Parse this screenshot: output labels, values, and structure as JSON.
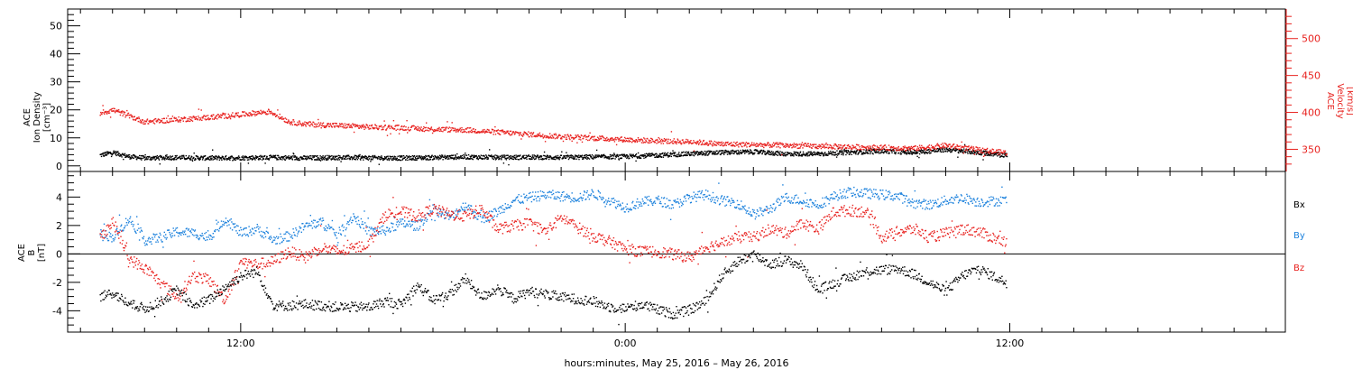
{
  "xlabel": "hours:minutes, May 25, 2016 – May 26, 2016",
  "colors": {
    "black": "#000000",
    "red": "#e8211e",
    "blue": "#1a80dc"
  },
  "chart_data": [
    {
      "type": "scatter",
      "panel": "top",
      "ylabel_left": [
        "ACE",
        "Ion Density",
        "[cm⁻³]"
      ],
      "ylabel_right": [
        "ACE",
        "Velocity",
        "[km/s]"
      ],
      "ylim_left": [
        -2,
        56
      ],
      "yticks_left": [
        0,
        10,
        20,
        30,
        40,
        50
      ],
      "ylim_right": [
        320,
        540
      ],
      "yticks_right": [
        350,
        400,
        450,
        500
      ],
      "x_ticks": [
        "12:00",
        "0:00",
        "12:00"
      ],
      "series": [
        {
          "name": "Ion Density",
          "axis": "left",
          "color": "#000000",
          "x": [
            7.6,
            8,
            8.5,
            9,
            10,
            11,
            12,
            13,
            14,
            15,
            16,
            17,
            18,
            19,
            20,
            21,
            22,
            23,
            24,
            25,
            26,
            27,
            28,
            29,
            30,
            31,
            32,
            33,
            34,
            35,
            35.9
          ],
          "y": [
            4,
            5,
            3.5,
            3,
            3.2,
            3,
            3.1,
            3.2,
            3,
            3.2,
            3.1,
            3,
            3.2,
            3.4,
            3.2,
            3.3,
            3.2,
            3.4,
            3.5,
            4,
            4.5,
            5,
            5.2,
            4.5,
            4.5,
            5,
            5.5,
            5,
            6,
            5,
            4
          ]
        },
        {
          "name": "Velocity",
          "axis": "right",
          "color": "#e8211e",
          "x": [
            7.6,
            8,
            8.5,
            9,
            10,
            11,
            12,
            12.9,
            13.5,
            14,
            15,
            16,
            17,
            18,
            19,
            20,
            21,
            22,
            23,
            24,
            25,
            26,
            27,
            28,
            29,
            30,
            31,
            32,
            33,
            34,
            35,
            35.9
          ],
          "y": [
            400,
            404,
            396,
            388,
            391,
            394,
            398,
            402,
            388,
            385,
            383,
            381,
            380,
            378,
            377,
            374,
            371,
            368,
            366,
            364,
            362,
            361,
            358,
            357,
            356,
            355,
            354,
            353,
            352,
            356,
            350,
            346
          ]
        }
      ]
    },
    {
      "type": "scatter",
      "panel": "bottom",
      "ylabel_left": [
        "ACE",
        "B",
        "[nT]"
      ],
      "ylim": [
        -5.5,
        5.8
      ],
      "yticks": [
        -4,
        -2,
        0,
        2,
        4
      ],
      "x_ticks": [
        "12:00",
        "0:00",
        "12:00"
      ],
      "series": [
        {
          "name": "Bx",
          "color": "#000000",
          "x": [
            7.6,
            8,
            8.5,
            9,
            9.5,
            10,
            10.5,
            11,
            11.5,
            12,
            12.5,
            13,
            13.5,
            14,
            15,
            16,
            16.5,
            17,
            17.5,
            18,
            18.5,
            19,
            19.5,
            20,
            20.5,
            21,
            22,
            23,
            23.5,
            24,
            24.5,
            25,
            25.5,
            26,
            26.5,
            27,
            27.5,
            28,
            28.5,
            29,
            29.5,
            30,
            30.5,
            31,
            31.5,
            32,
            32.5,
            33,
            33.5,
            34,
            34.5,
            35,
            35.9
          ],
          "y": [
            -3,
            -2.7,
            -3.5,
            -3.8,
            -3.3,
            -2.5,
            -3.6,
            -3.2,
            -2.3,
            -1.5,
            -1.2,
            -3.6,
            -3.6,
            -3.5,
            -3.7,
            -3.7,
            -3.3,
            -3.5,
            -2.2,
            -3.2,
            -2.8,
            -1.7,
            -3,
            -2.4,
            -3.1,
            -2.6,
            -3,
            -3.3,
            -3.7,
            -3.8,
            -3.5,
            -3.9,
            -4.2,
            -3.9,
            -3.3,
            -1.5,
            -0.5,
            0,
            -0.7,
            -0.4,
            -0.8,
            -2.5,
            -2,
            -1.6,
            -1.2,
            -1.1,
            -1,
            -1.4,
            -2,
            -2.6,
            -1.5,
            -1,
            -2
          ]
        },
        {
          "name": "By",
          "color": "#1a80dc",
          "x": [
            7.6,
            8,
            8.5,
            9,
            9.5,
            10,
            10.5,
            11,
            11.5,
            12,
            12.5,
            13,
            13.5,
            14,
            14.5,
            15,
            15.5,
            16,
            16.5,
            17,
            17.5,
            18,
            18.5,
            19,
            19.5,
            20,
            20.5,
            21,
            21.5,
            22,
            22.5,
            23,
            23.5,
            24,
            24.5,
            25,
            25.5,
            26,
            26.5,
            27,
            27.5,
            28,
            28.5,
            29,
            29.5,
            30,
            30.5,
            31,
            31.5,
            32,
            32.5,
            33,
            33.5,
            34,
            34.5,
            35,
            35.9
          ],
          "y": [
            1.5,
            1.2,
            2.5,
            1,
            1.2,
            1.6,
            1.5,
            1.2,
            2.5,
            1.5,
            1.8,
            1,
            1.3,
            2,
            2.3,
            1.4,
            2.7,
            1.6,
            1.7,
            2.2,
            2,
            3.2,
            2.6,
            3.5,
            2.5,
            3,
            3.8,
            4,
            4.2,
            4.1,
            4,
            4.3,
            3.8,
            3.3,
            3.7,
            3.8,
            3.5,
            4,
            4.2,
            3.8,
            3.6,
            2.8,
            3.2,
            4.0,
            3.8,
            3.5,
            4.1,
            4.4,
            4.3,
            4.2,
            4.1,
            3.6,
            3.5,
            3.8,
            4,
            3.7,
            3.8
          ]
        },
        {
          "name": "Bz",
          "color": "#e8211e",
          "x": [
            7.6,
            8,
            8.5,
            9,
            9.5,
            10,
            10.5,
            11,
            11.5,
            12,
            12.5,
            13,
            13.5,
            14,
            14.5,
            15,
            15.5,
            16,
            16.5,
            17,
            17.5,
            18,
            18.5,
            19,
            19.5,
            20,
            20.5,
            21,
            21.5,
            22,
            22.5,
            23,
            23.5,
            24,
            24.5,
            25,
            25.5,
            26,
            26.5,
            27,
            27.5,
            28,
            28.5,
            29,
            29.5,
            30,
            30.5,
            31,
            31.5,
            32,
            32.5,
            33,
            33.5,
            34,
            34.5,
            35,
            35.9
          ],
          "y": [
            1.2,
            2.3,
            -0.3,
            -1,
            -2,
            -3,
            -1.5,
            -1.8,
            -3.2,
            -0.5,
            -0.7,
            -0.5,
            0.2,
            -0.2,
            0.5,
            0.2,
            0.4,
            0.8,
            2.8,
            3.0,
            2.7,
            3.2,
            2.8,
            2.7,
            3.2,
            1.8,
            2,
            2.2,
            1.6,
            2.6,
            1.9,
            1.3,
            0.9,
            0.4,
            0.2,
            0.2,
            0,
            -0.2,
            0.5,
            0.8,
            1.2,
            1.2,
            1.8,
            1.5,
            2.2,
            1.8,
            3.0,
            3.1,
            3,
            1.2,
            1.6,
            1.8,
            1.2,
            1.5,
            1.8,
            1.6,
            0.8
          ]
        }
      ],
      "legend": [
        "Bx",
        "By",
        "Bz"
      ]
    }
  ]
}
